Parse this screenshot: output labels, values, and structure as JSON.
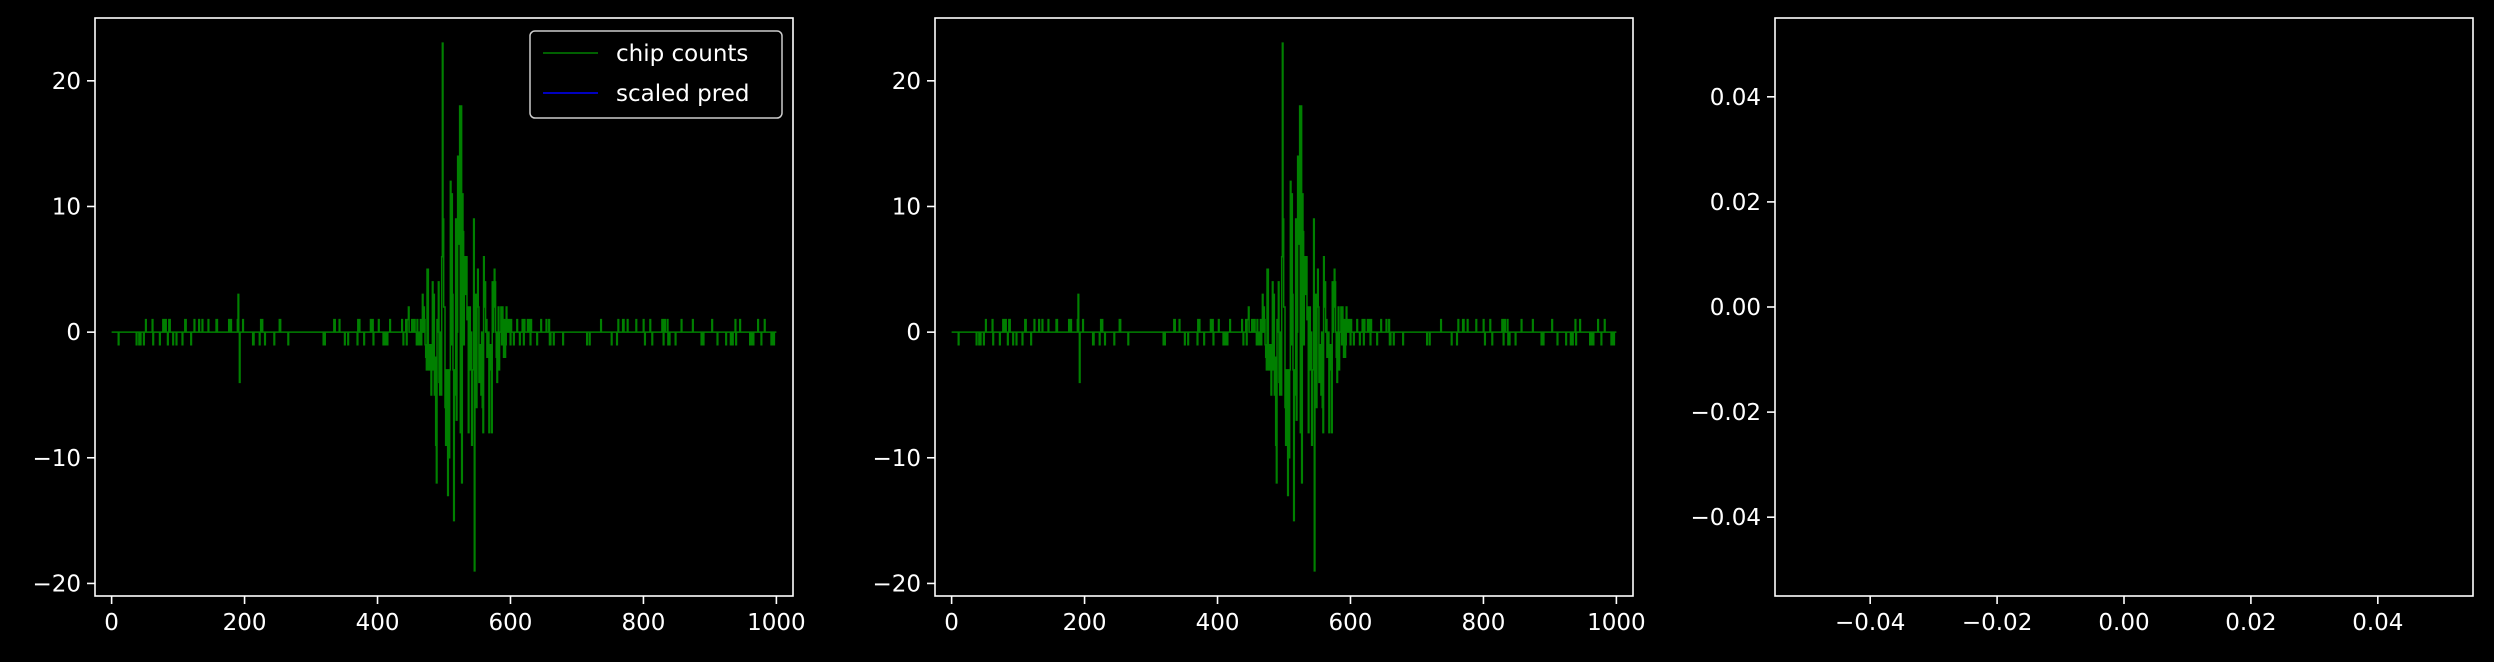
{
  "chart_data": [
    {
      "type": "line",
      "style": "steps",
      "xlim": [
        -25,
        1025
      ],
      "ylim": [
        -21,
        25
      ],
      "xticks": [
        0,
        200,
        400,
        600,
        800,
        1000
      ],
      "yticks": [
        -20,
        -10,
        0,
        10,
        20
      ],
      "xtick_labels": [
        "0",
        "200",
        "400",
        "600",
        "800",
        "1000"
      ],
      "ytick_labels": [
        "−20",
        "−10",
        "0",
        "10",
        "20"
      ],
      "legend": {
        "placement": "top-right",
        "entries": [
          "chip counts",
          "scaled pred"
        ]
      },
      "series": [
        {
          "name": "chip counts",
          "color": "#008000",
          "x_start": 0,
          "x_end": 1000,
          "n_points": 1000,
          "profile": "noise-envelope",
          "y_extremes": [
            {
              "x": 190,
              "y": 3
            },
            {
              "x": 192,
              "y": -4
            },
            {
              "x": 497,
              "y": 23
            },
            {
              "x": 506,
              "y": -13
            },
            {
              "x": 526,
              "y": 18
            },
            {
              "x": 546,
              "y": -19
            }
          ]
        },
        {
          "name": "scaled pred",
          "color": "#0000ff",
          "x": [],
          "y": []
        }
      ]
    },
    {
      "type": "line",
      "style": "steps",
      "xlim": [
        -25,
        1025
      ],
      "ylim": [
        -21,
        25
      ],
      "xticks": [
        0,
        200,
        400,
        600,
        800,
        1000
      ],
      "yticks": [
        -20,
        -10,
        0,
        10,
        20
      ],
      "xtick_labels": [
        "0",
        "200",
        "400",
        "600",
        "800",
        "1000"
      ],
      "ytick_labels": [
        "−20",
        "−10",
        "0",
        "10",
        "20"
      ],
      "series": [
        {
          "color": "#008000",
          "x_start": 0,
          "x_end": 1000,
          "n_points": 1000,
          "profile": "noise-envelope",
          "y_extremes": [
            {
              "x": 190,
              "y": 3
            },
            {
              "x": 192,
              "y": -4
            },
            {
              "x": 497,
              "y": 23
            },
            {
              "x": 506,
              "y": -13
            },
            {
              "x": 526,
              "y": 18
            },
            {
              "x": 546,
              "y": -19
            }
          ]
        }
      ]
    },
    {
      "type": "line",
      "xlim": [
        -0.055,
        0.055
      ],
      "ylim": [
        -0.055,
        0.055
      ],
      "xticks": [
        -0.04,
        -0.02,
        0.0,
        0.02,
        0.04
      ],
      "yticks": [
        -0.04,
        -0.02,
        0.0,
        0.02,
        0.04
      ],
      "xtick_labels": [
        "−0.04",
        "−0.02",
        "0.00",
        "0.02",
        "0.04"
      ],
      "ytick_labels": [
        "−0.04",
        "−0.02",
        "0.00",
        "0.02",
        "0.04"
      ],
      "series": []
    }
  ],
  "colors": {
    "background": "#000000",
    "axes": "#ffffff",
    "counts": "#008000",
    "pred": "#0000ff"
  }
}
